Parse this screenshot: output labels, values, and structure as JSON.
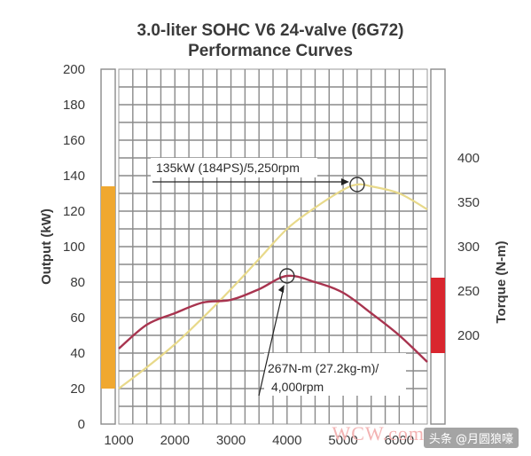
{
  "chart_data": {
    "type": "line",
    "title": "3.0-liter SOHC V6 24-valve (6G72)",
    "subtitle": "Performance Curves",
    "xlim": [
      1000,
      6500
    ],
    "x_ticks": [
      "1000",
      "2000",
      "3000",
      "4000",
      "5000",
      "6000"
    ],
    "y_left": {
      "label": "Output (kW)",
      "lim": [
        0,
        200
      ],
      "ticks": [
        "0",
        "20",
        "40",
        "60",
        "80",
        "100",
        "120",
        "140",
        "160",
        "180",
        "200"
      ]
    },
    "y_right": {
      "label": "Torque (N-m)",
      "lim": [
        100,
        500
      ],
      "ticks": [
        "200",
        "250",
        "300",
        "350",
        "400"
      ]
    },
    "grid": true,
    "series": [
      {
        "axis": "left",
        "color": "#e8d98a",
        "x": [
          1000,
          1500,
          2000,
          2500,
          3000,
          3500,
          4000,
          4500,
          5000,
          5250,
          5500,
          6000,
          6500
        ],
        "values": [
          20,
          32,
          45,
          60,
          76,
          93,
          110,
          122,
          132,
          135,
          134,
          130,
          121
        ]
      },
      {
        "axis": "right",
        "color": "#a8344f",
        "x": [
          1000,
          1500,
          2000,
          2500,
          3000,
          3500,
          4000,
          4500,
          5000,
          5500,
          6000,
          6500
        ],
        "values": [
          185,
          212,
          225,
          237,
          240,
          252,
          267,
          260,
          248,
          225,
          200,
          170
        ]
      }
    ],
    "range_bars": [
      {
        "axis": "left",
        "from": 20,
        "to": 134,
        "color": "#f0a830"
      },
      {
        "axis": "right",
        "from": 180,
        "to": 265,
        "color": "#d9262e"
      }
    ],
    "annotations": [
      {
        "lines": [
          "135kW (184PS)/5,250rpm"
        ],
        "point_x": 5250,
        "point_y": 135,
        "axis": "left"
      },
      {
        "lines": [
          "267N-m (27.2kg-m)/",
          "4,000rpm"
        ],
        "point_x": 4000,
        "point_y": 267,
        "axis": "right"
      }
    ]
  },
  "watermark": {
    "site": "WCW.com",
    "account": "头条 @月圆狼嚎"
  }
}
